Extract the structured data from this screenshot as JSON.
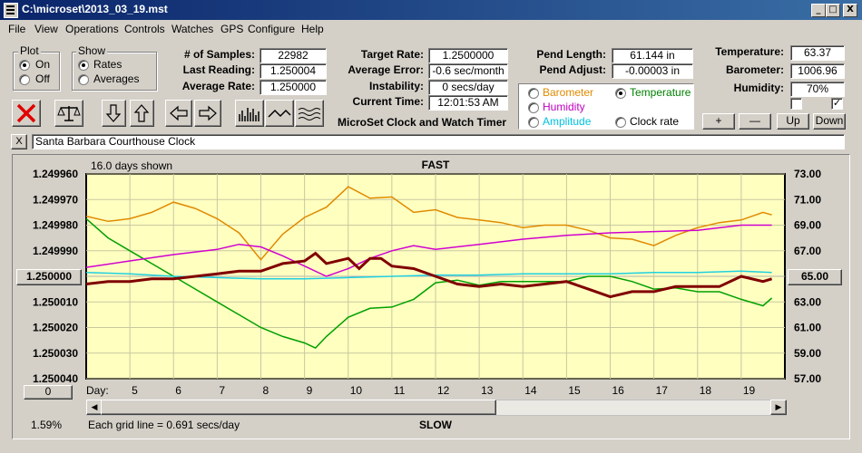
{
  "window": {
    "title": "C:\\microset\\2013_03_19.mst",
    "controls": [
      "_",
      "□",
      "X"
    ]
  },
  "menu": [
    "File",
    "View",
    "Operations",
    "Controls",
    "Watches",
    "GPS",
    "Configure",
    "Help"
  ],
  "plot_group": {
    "title": "Plot",
    "options": [
      "On",
      "Off"
    ],
    "selected": "On"
  },
  "show_group": {
    "title": "Show",
    "options": [
      "Rates",
      "Averages"
    ],
    "selected": "Rates"
  },
  "stats": {
    "samples_label": "# of Samples:",
    "samples": "22982",
    "last_reading_label": "Last Reading:",
    "last_reading": "1.250004",
    "average_rate_label": "Average Rate:",
    "average_rate": "1.250000",
    "target_rate_label": "Target Rate:",
    "target_rate": "1.2500000",
    "average_error_label": "Average Error:",
    "average_error": "-0.6 sec/month",
    "instability_label": "Instability:",
    "instability": "0 secs/day",
    "current_time_label": "Current Time:",
    "current_time": "12:01:53 AM",
    "pend_length_label": "Pend Length:",
    "pend_length": "61.144 in",
    "pend_adjust_label": "Pend Adjust:",
    "pend_adjust": "-0.00003 in",
    "temperature_label": "Temperature:",
    "temperature": "63.37",
    "barometer_label": "Barometer:",
    "barometer": "1006.96",
    "humidity_label": "Humidity:",
    "humidity": "70%"
  },
  "app_caption": "MicroSet Clock and Watch Timer",
  "sensor_options": {
    "items": [
      {
        "label": "Barometer",
        "color": "#e08a00"
      },
      {
        "label": "Temperature",
        "color": "#008000"
      },
      {
        "label": "Humidity",
        "color": "#c000c0"
      },
      {
        "label": "Clock rate",
        "color": "#000000"
      },
      {
        "label": "Amplitude",
        "color": "#00c0e0"
      }
    ],
    "selected": "Temperature"
  },
  "scale_buttons": [
    "+",
    "—",
    "Up",
    "Down"
  ],
  "checkboxes": [
    {
      "checked": false
    },
    {
      "checked": true
    }
  ],
  "clear_button": "X",
  "clock_name": "Santa Barbara Courthouse Clock",
  "chart_data": {
    "type": "line",
    "title": "FAST",
    "bottom_label": "SLOW",
    "days_shown": "16.0 days shown",
    "grid_note": "Each grid line = 0.691 secs/day",
    "xlabel": "Day:",
    "x_ticks": [
      "5",
      "6",
      "7",
      "8",
      "9",
      "10",
      "11",
      "12",
      "13",
      "14",
      "15",
      "16",
      "17",
      "18",
      "19"
    ],
    "xlim": [
      4,
      20
    ],
    "left_ticks": [
      "1.249960",
      "1.249970",
      "1.249980",
      "1.249990",
      "1.250000",
      "1.250010",
      "1.250020",
      "1.250030",
      "1.250040"
    ],
    "left_ylim": [
      1.24996,
      1.25004
    ],
    "left_center_value": "1.250000",
    "left_bottom_value": "0",
    "right_ticks": [
      "73.00",
      "71.00",
      "69.00",
      "67.00",
      "65.00",
      "63.00",
      "61.00",
      "59.00",
      "57.00"
    ],
    "right_ylim": [
      57,
      73
    ],
    "right_center_value": "65.00",
    "zoom_percent": "1.59%",
    "series": [
      {
        "name": "Barometer",
        "color": "#e08a00",
        "x": [
          4.0,
          4.5,
          5.0,
          5.5,
          6.0,
          6.5,
          7.0,
          7.5,
          8.0,
          8.5,
          9.0,
          9.5,
          10.0,
          10.5,
          11.0,
          11.5,
          12.0,
          12.5,
          13.0,
          13.5,
          14.0,
          14.5,
          15.0,
          15.5,
          16.0,
          16.5,
          17.0,
          17.5,
          18.0,
          18.5,
          19.0,
          19.5,
          19.7
        ],
        "y": [
          69.7,
          69.3,
          69.5,
          70.0,
          70.8,
          70.3,
          69.5,
          68.4,
          66.3,
          68.3,
          69.6,
          70.4,
          72.0,
          71.1,
          71.2,
          70.0,
          70.2,
          69.6,
          69.4,
          69.2,
          68.8,
          69.0,
          69.0,
          68.6,
          68.0,
          67.9,
          67.4,
          68.2,
          68.8,
          69.2,
          69.4,
          70.0,
          69.8
        ]
      },
      {
        "name": "Temperature",
        "color": "#00a000",
        "x": [
          4.0,
          4.5,
          5.0,
          5.5,
          6.0,
          6.5,
          7.0,
          7.5,
          8.0,
          8.5,
          9.0,
          9.25,
          9.5,
          10.0,
          10.5,
          11.0,
          11.5,
          12.0,
          12.5,
          13.0,
          13.5,
          14.0,
          14.5,
          15.0,
          15.5,
          16.0,
          16.5,
          17.0,
          17.5,
          18.0,
          18.5,
          19.0,
          19.5,
          19.7
        ],
        "y": [
          69.5,
          68.0,
          67.0,
          66.0,
          65.0,
          64.0,
          63.0,
          62.0,
          61.0,
          60.3,
          59.8,
          59.4,
          60.3,
          61.8,
          62.5,
          62.6,
          63.2,
          64.5,
          64.7,
          64.3,
          64.6,
          64.6,
          64.6,
          64.6,
          65.0,
          65.0,
          64.6,
          64.0,
          64.1,
          63.8,
          63.8,
          63.2,
          62.7,
          63.3
        ]
      },
      {
        "name": "Humidity",
        "color": "#d000d0",
        "x": [
          4.0,
          5.0,
          6.0,
          7.0,
          7.5,
          8.0,
          8.5,
          9.0,
          9.5,
          10.0,
          10.5,
          11.0,
          11.5,
          12.0,
          13.0,
          14.0,
          15.0,
          16.0,
          17.0,
          18.0,
          19.0,
          19.7
        ],
        "y": [
          65.7,
          66.2,
          66.7,
          67.1,
          67.5,
          67.3,
          66.6,
          65.8,
          65.0,
          65.6,
          66.4,
          67.0,
          67.4,
          67.1,
          67.5,
          67.9,
          68.2,
          68.4,
          68.5,
          68.6,
          69.0,
          69.0
        ]
      },
      {
        "name": "Amplitude",
        "color": "#20d0e0",
        "x": [
          4.0,
          5.0,
          6.0,
          7.0,
          8.0,
          9.0,
          10.0,
          11.0,
          12.0,
          13.0,
          14.0,
          15.0,
          16.0,
          17.0,
          18.0,
          19.0,
          19.7
        ],
        "y": [
          65.3,
          65.2,
          65.0,
          64.9,
          64.8,
          64.8,
          64.9,
          65.0,
          65.1,
          65.1,
          65.2,
          65.2,
          65.2,
          65.3,
          65.3,
          65.4,
          65.3
        ]
      },
      {
        "name": "Clock rate",
        "color": "#800000",
        "x": [
          4.0,
          4.5,
          5.0,
          5.5,
          6.0,
          6.5,
          7.0,
          7.5,
          8.0,
          8.5,
          9.0,
          9.25,
          9.5,
          10.0,
          10.25,
          10.5,
          10.75,
          11.0,
          11.5,
          12.0,
          12.5,
          13.0,
          13.5,
          14.0,
          14.5,
          15.0,
          15.5,
          16.0,
          16.5,
          17.0,
          17.5,
          18.0,
          18.5,
          19.0,
          19.5,
          19.7
        ],
        "y": [
          1.250003,
          1.250002,
          1.250002,
          1.250001,
          1.250001,
          1.25,
          1.249999,
          1.249998,
          1.249998,
          1.249995,
          1.249994,
          1.249991,
          1.249995,
          1.249993,
          1.249997,
          1.249993,
          1.249993,
          1.249996,
          1.249997,
          1.25,
          1.250003,
          1.250004,
          1.250003,
          1.250004,
          1.250003,
          1.250002,
          1.250005,
          1.250008,
          1.250006,
          1.250006,
          1.250004,
          1.250004,
          1.250004,
          1.25,
          1.250002,
          1.250001
        ]
      }
    ]
  }
}
